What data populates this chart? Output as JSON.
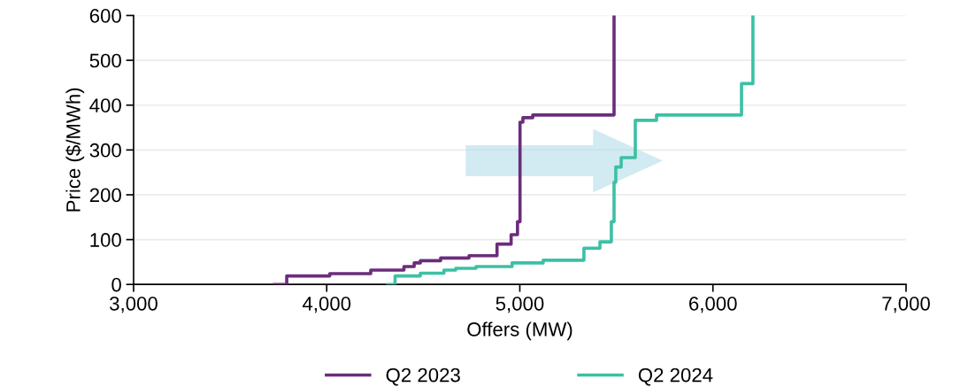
{
  "chart_data": {
    "type": "step",
    "xlabel": "Offers (MW)",
    "ylabel": "Price ($/MWh)",
    "series": [
      {
        "name": "Q2 2023",
        "color": "#6b2d7b",
        "x": [
          3729,
          3793,
          4016,
          4228,
          4400,
          4453,
          4485,
          4590,
          4737,
          4882,
          4955,
          4988,
          5001,
          5016,
          5067,
          5488
        ],
        "values": [
          0,
          19,
          24,
          32,
          40,
          48,
          53,
          59,
          64,
          90,
          111,
          140,
          362,
          372,
          378,
          600
        ]
      },
      {
        "name": "Q2 2024",
        "color": "#3cc0a5",
        "x": [
          4316,
          4354,
          4485,
          4607,
          4668,
          4773,
          4960,
          5121,
          5332,
          5415,
          5474,
          5488,
          5497,
          5525,
          5598,
          5708,
          6148,
          6207
        ],
        "values": [
          0,
          19,
          25,
          32,
          36,
          40,
          48,
          54,
          81,
          95,
          140,
          228,
          262,
          283,
          366,
          378,
          448,
          600
        ]
      }
    ],
    "xlim": [
      3000,
      7000
    ],
    "xticks": [
      {
        "value": 3000,
        "label": "3,000"
      },
      {
        "value": 4000,
        "label": "4,000"
      },
      {
        "value": 5000,
        "label": "5,000"
      },
      {
        "value": 6000,
        "label": "6,000"
      },
      {
        "value": 7000,
        "label": "7,000"
      }
    ],
    "ylim": [
      0,
      600
    ],
    "yticks": [
      0,
      100,
      200,
      300,
      400,
      500,
      600
    ],
    "grid": "y",
    "legend": "bottom",
    "line_style": "solid"
  }
}
